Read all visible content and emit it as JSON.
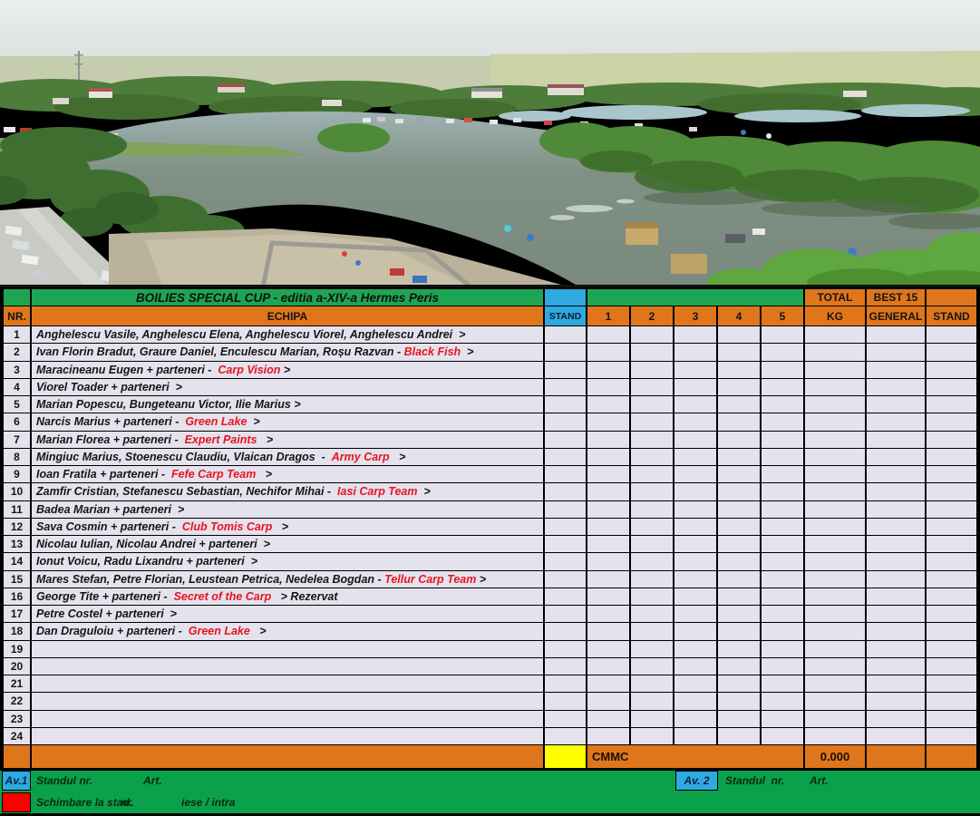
{
  "title": "BOILIES SPECIAL CUP - editia a-XIV-a Hermes Peris",
  "colors": {
    "header_green": "#1EA553",
    "header_orange": "#E0761B",
    "stand_blue": "#2FA9E0",
    "row_fill": "#E4E2EC",
    "summary_yellow": "#FFFF00",
    "marker_red": "#FF0000",
    "sponsor_red": "#E81420",
    "footer_green": "#0BA14A"
  },
  "header": {
    "nr": "NR.",
    "echipa": "ECHIPA",
    "stand": "STAND",
    "catch_cols": [
      "1",
      "2",
      "3",
      "4",
      "5"
    ],
    "total_top": "TOTAL",
    "total_bottom": "KG",
    "best_top": "BEST 15",
    "best_bottom": "GENERAL",
    "stand_right": "STAND"
  },
  "teams": [
    {
      "nr": "1",
      "segments": [
        {
          "t": "Anghelescu Vasile, Anghelescu Elena, Anghelescu Viorel, Anghelescu Andrei  >",
          "c": "k"
        }
      ]
    },
    {
      "nr": "2",
      "segments": [
        {
          "t": "Ivan Florin Bradut, Graure Daniel, Enculescu Marian, Roșu Razvan - ",
          "c": "k"
        },
        {
          "t": "Black Fish",
          "c": "r"
        },
        {
          "t": "  >",
          "c": "k"
        }
      ]
    },
    {
      "nr": "3",
      "segments": [
        {
          "t": "Maracineanu Eugen + parteneri -  ",
          "c": "k"
        },
        {
          "t": "Carp Vision",
          "c": "r"
        },
        {
          "t": " >",
          "c": "k"
        }
      ]
    },
    {
      "nr": "4",
      "segments": [
        {
          "t": "Viorel Toader + parteneri  >",
          "c": "k"
        }
      ]
    },
    {
      "nr": "5",
      "segments": [
        {
          "t": "Marian Popescu, Bungeteanu Victor, Ilie Marius >",
          "c": "k"
        }
      ]
    },
    {
      "nr": "6",
      "segments": [
        {
          "t": "Narcis Marius + parteneri -  ",
          "c": "k"
        },
        {
          "t": "Green Lake",
          "c": "r"
        },
        {
          "t": "  >",
          "c": "k"
        }
      ]
    },
    {
      "nr": "7",
      "segments": [
        {
          "t": "Marian Florea + parteneri -  ",
          "c": "k"
        },
        {
          "t": "Expert Paints",
          "c": "r"
        },
        {
          "t": "   >",
          "c": "k"
        }
      ]
    },
    {
      "nr": "8",
      "segments": [
        {
          "t": "Mingiuc Marius, Stoenescu Claudiu, Vlaican Dragos  -  ",
          "c": "k"
        },
        {
          "t": "Army Carp",
          "c": "r"
        },
        {
          "t": "   >",
          "c": "k"
        }
      ]
    },
    {
      "nr": "9",
      "segments": [
        {
          "t": "Ioan Fratila + parteneri -  ",
          "c": "k"
        },
        {
          "t": "Fefe Carp Team",
          "c": "r"
        },
        {
          "t": "   >",
          "c": "k"
        }
      ]
    },
    {
      "nr": "10",
      "segments": [
        {
          "t": "Zamfir Cristian, Stefanescu Sebastian, Nechifor Mihai -  ",
          "c": "k"
        },
        {
          "t": "Iasi Carp Team",
          "c": "r"
        },
        {
          "t": "  >",
          "c": "k"
        }
      ]
    },
    {
      "nr": "11",
      "segments": [
        {
          "t": "Badea Marian + parteneri  >",
          "c": "k"
        }
      ]
    },
    {
      "nr": "12",
      "segments": [
        {
          "t": "Sava Cosmin + parteneri -  ",
          "c": "k"
        },
        {
          "t": "Club Tomis Carp",
          "c": "r"
        },
        {
          "t": "   >",
          "c": "k"
        }
      ]
    },
    {
      "nr": "13",
      "segments": [
        {
          "t": "Nicolau Iulian, Nicolau Andrei + parteneri  >",
          "c": "k"
        }
      ]
    },
    {
      "nr": "14",
      "segments": [
        {
          "t": "Ionut Voicu, Radu Lixandru + parteneri  >",
          "c": "k"
        }
      ]
    },
    {
      "nr": "15",
      "segments": [
        {
          "t": "Mares Stefan, Petre Florian, Leustean Petrica, Nedelea Bogdan - ",
          "c": "k"
        },
        {
          "t": "Tellur Carp Team",
          "c": "r"
        },
        {
          "t": " >",
          "c": "k"
        }
      ]
    },
    {
      "nr": "16",
      "segments": [
        {
          "t": "George Tite + parteneri -  ",
          "c": "k"
        },
        {
          "t": "Secret of the Carp",
          "c": "r"
        },
        {
          "t": "   > Rezervat",
          "c": "k"
        }
      ]
    },
    {
      "nr": "17",
      "segments": [
        {
          "t": "Petre Costel + parteneri  >",
          "c": "k"
        }
      ]
    },
    {
      "nr": "18",
      "segments": [
        {
          "t": "Dan Draguloiu + parteneri -  ",
          "c": "k"
        },
        {
          "t": "Green Lake",
          "c": "r"
        },
        {
          "t": "   >",
          "c": "k"
        }
      ]
    },
    {
      "nr": "19",
      "segments": []
    },
    {
      "nr": "20",
      "segments": []
    },
    {
      "nr": "21",
      "segments": []
    },
    {
      "nr": "22",
      "segments": []
    },
    {
      "nr": "23",
      "segments": []
    },
    {
      "nr": "24",
      "segments": []
    }
  ],
  "summary": {
    "cmmc": "CMMC",
    "total_kg": "0.000"
  },
  "footer": {
    "av1_label": "Av.1",
    "av1_stand": "Standul nr.",
    "av1_art": "Art.",
    "av2_label": "Av. 2",
    "av2_stand": "Standul  nr.",
    "av2_art": "Art.",
    "change_label": "Schimbare la stad.",
    "change_nr": "nr.",
    "change_inout": "iese / intra"
  }
}
